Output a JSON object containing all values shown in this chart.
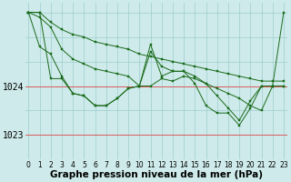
{
  "background_color": "#ceeaea",
  "grid_color": "#9ecece",
  "line_color": "#1a6b1a",
  "marker_color": "#1a6b1a",
  "xlabel": "Graphe pression niveau de la mer (hPa)",
  "xlabel_fontsize": 7.5,
  "ylabel_tick_fontsize": 7,
  "xtick_fontsize": 5.5,
  "yticks": [
    1023,
    1024
  ],
  "ylim": [
    1022.5,
    1025.7
  ],
  "xlim": [
    -0.3,
    23.3
  ],
  "red_lines": [
    1023,
    1024
  ],
  "series": [
    [
      1025.5,
      1025.5,
      1025.3,
      1025.15,
      1025.05,
      1025.0,
      1024.9,
      1024.85,
      1024.8,
      1024.75,
      1024.65,
      1024.6,
      1024.55,
      1024.5,
      1024.45,
      1024.4,
      1024.35,
      1024.3,
      1024.25,
      1024.2,
      1024.15,
      1024.1,
      1024.1,
      1024.1
    ],
    [
      1025.5,
      1025.4,
      1025.2,
      1024.75,
      1024.55,
      1024.45,
      1024.35,
      1024.3,
      1024.25,
      1024.2,
      1024.0,
      1024.0,
      1024.15,
      1024.1,
      1024.2,
      1024.15,
      1024.05,
      1023.95,
      1023.85,
      1023.75,
      1023.6,
      1023.5,
      1024.0,
      1024.0
    ],
    [
      1025.5,
      1024.8,
      1024.65,
      1024.2,
      1023.85,
      1023.8,
      1023.6,
      1023.6,
      1023.75,
      1023.95,
      1024.0,
      1024.7,
      1024.4,
      1024.3,
      1024.3,
      1024.2,
      1024.05,
      1023.8,
      1023.55,
      1023.3,
      1023.7,
      1024.0,
      1024.0,
      1025.5
    ],
    [
      1025.5,
      1025.5,
      1024.15,
      1024.15,
      1023.85,
      1023.8,
      1023.6,
      1023.6,
      1023.75,
      1023.95,
      1024.0,
      1024.85,
      1024.2,
      1024.3,
      1024.3,
      1024.05,
      1023.6,
      1023.45,
      1023.45,
      1023.2,
      1023.55,
      1024.0,
      1024.0,
      1024.0
    ]
  ]
}
